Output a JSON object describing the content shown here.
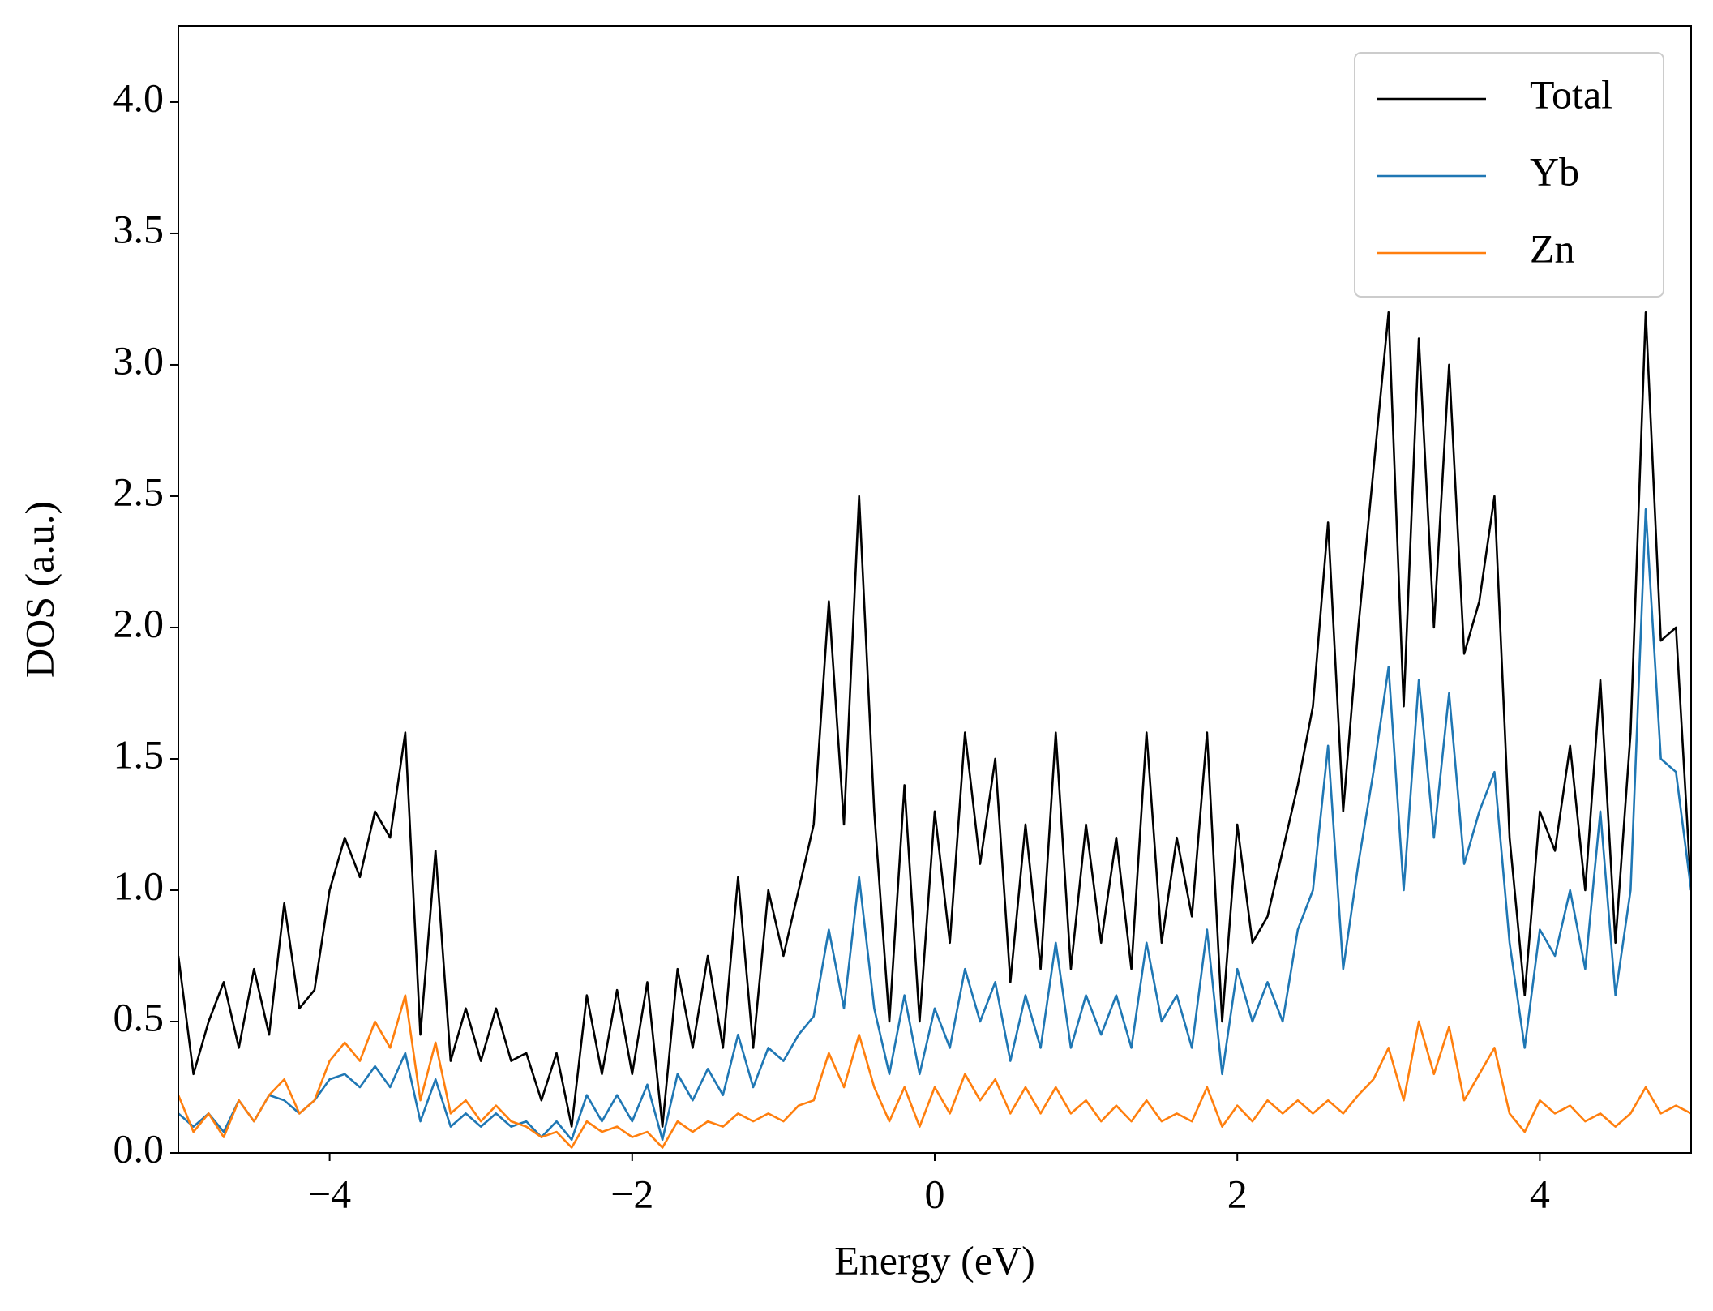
{
  "chart_data": {
    "type": "line",
    "xlabel": "Energy (eV)",
    "ylabel": "DOS (a.u.)",
    "x": [
      -5.0,
      -4.9,
      -4.8,
      -4.7,
      -4.6,
      -4.5,
      -4.4,
      -4.3,
      -4.2,
      -4.1,
      -4.0,
      -3.9,
      -3.8,
      -3.7,
      -3.6,
      -3.5,
      -3.4,
      -3.3,
      -3.2,
      -3.1,
      -3.0,
      -2.9,
      -2.8,
      -2.7,
      -2.6,
      -2.5,
      -2.4,
      -2.3,
      -2.2,
      -2.1,
      -2.0,
      -1.9,
      -1.8,
      -1.7,
      -1.6,
      -1.5,
      -1.4,
      -1.3,
      -1.2,
      -1.1,
      -1.0,
      -0.9,
      -0.8,
      -0.7,
      -0.6,
      -0.5,
      -0.4,
      -0.3,
      -0.2,
      -0.1,
      0.0,
      0.1,
      0.2,
      0.3,
      0.4,
      0.5,
      0.6,
      0.7,
      0.8,
      0.9,
      1.0,
      1.1,
      1.2,
      1.3,
      1.4,
      1.5,
      1.6,
      1.7,
      1.8,
      1.9,
      2.0,
      2.1,
      2.2,
      2.3,
      2.4,
      2.5,
      2.6,
      2.7,
      2.8,
      2.9,
      3.0,
      3.1,
      3.2,
      3.3,
      3.4,
      3.5,
      3.6,
      3.7,
      3.8,
      3.9,
      4.0,
      4.1,
      4.2,
      4.3,
      4.4,
      4.5,
      4.6,
      4.7,
      4.8,
      4.9,
      5.0
    ],
    "series": [
      {
        "name": "Total",
        "color": "#000000",
        "values": [
          0.75,
          0.3,
          0.5,
          0.65,
          0.4,
          0.7,
          0.45,
          0.95,
          0.55,
          0.62,
          1.0,
          1.2,
          1.05,
          1.3,
          1.2,
          1.6,
          0.45,
          1.15,
          0.35,
          0.55,
          0.35,
          0.55,
          0.35,
          0.38,
          0.2,
          0.38,
          0.1,
          0.6,
          0.3,
          0.62,
          0.3,
          0.65,
          0.1,
          0.7,
          0.4,
          0.75,
          0.4,
          1.05,
          0.4,
          1.0,
          0.75,
          1.0,
          1.25,
          2.1,
          1.25,
          2.5,
          1.3,
          0.5,
          1.4,
          0.5,
          1.3,
          0.8,
          1.6,
          1.1,
          1.5,
          0.65,
          1.25,
          0.7,
          1.6,
          0.7,
          1.25,
          0.8,
          1.2,
          0.7,
          1.6,
          0.8,
          1.2,
          0.9,
          1.6,
          0.5,
          1.25,
          0.8,
          0.9,
          1.15,
          1.4,
          1.7,
          2.4,
          1.3,
          2.0,
          2.6,
          3.2,
          1.7,
          3.1,
          2.0,
          3.0,
          1.9,
          2.1,
          2.5,
          1.2,
          0.6,
          1.3,
          1.15,
          1.55,
          1.0,
          1.8,
          0.8,
          1.6,
          3.2,
          1.95,
          2.0,
          1.0
        ]
      },
      {
        "name": "Yb",
        "color": "#1f77b4",
        "values": [
          0.15,
          0.1,
          0.15,
          0.08,
          0.2,
          0.12,
          0.22,
          0.2,
          0.15,
          0.2,
          0.28,
          0.3,
          0.25,
          0.33,
          0.25,
          0.38,
          0.12,
          0.28,
          0.1,
          0.15,
          0.1,
          0.15,
          0.1,
          0.12,
          0.06,
          0.12,
          0.05,
          0.22,
          0.12,
          0.22,
          0.12,
          0.26,
          0.05,
          0.3,
          0.2,
          0.32,
          0.22,
          0.45,
          0.25,
          0.4,
          0.35,
          0.45,
          0.52,
          0.85,
          0.55,
          1.05,
          0.55,
          0.3,
          0.6,
          0.3,
          0.55,
          0.4,
          0.7,
          0.5,
          0.65,
          0.35,
          0.6,
          0.4,
          0.8,
          0.4,
          0.6,
          0.45,
          0.6,
          0.4,
          0.8,
          0.5,
          0.6,
          0.4,
          0.85,
          0.3,
          0.7,
          0.5,
          0.65,
          0.5,
          0.85,
          1.0,
          1.55,
          0.7,
          1.1,
          1.45,
          1.85,
          1.0,
          1.8,
          1.2,
          1.75,
          1.1,
          1.3,
          1.45,
          0.8,
          0.4,
          0.85,
          0.75,
          1.0,
          0.7,
          1.3,
          0.6,
          1.0,
          2.45,
          1.5,
          1.45,
          1.0
        ]
      },
      {
        "name": "Zn",
        "color": "#ff7f0e",
        "values": [
          0.22,
          0.08,
          0.15,
          0.06,
          0.2,
          0.12,
          0.22,
          0.28,
          0.15,
          0.2,
          0.35,
          0.42,
          0.35,
          0.5,
          0.4,
          0.6,
          0.2,
          0.42,
          0.15,
          0.2,
          0.12,
          0.18,
          0.12,
          0.1,
          0.06,
          0.08,
          0.02,
          0.12,
          0.08,
          0.1,
          0.06,
          0.08,
          0.02,
          0.12,
          0.08,
          0.12,
          0.1,
          0.15,
          0.12,
          0.15,
          0.12,
          0.18,
          0.2,
          0.38,
          0.25,
          0.45,
          0.25,
          0.12,
          0.25,
          0.1,
          0.25,
          0.15,
          0.3,
          0.2,
          0.28,
          0.15,
          0.25,
          0.15,
          0.25,
          0.15,
          0.2,
          0.12,
          0.18,
          0.12,
          0.2,
          0.12,
          0.15,
          0.12,
          0.25,
          0.1,
          0.18,
          0.12,
          0.2,
          0.15,
          0.2,
          0.15,
          0.2,
          0.15,
          0.22,
          0.28,
          0.4,
          0.2,
          0.5,
          0.3,
          0.48,
          0.2,
          0.3,
          0.4,
          0.15,
          0.08,
          0.2,
          0.15,
          0.18,
          0.12,
          0.15,
          0.1,
          0.15,
          0.25,
          0.15,
          0.18,
          0.15
        ]
      }
    ],
    "xlim": [
      -5,
      5
    ],
    "xticks": [
      {
        "value": -4,
        "label": "−4"
      },
      {
        "value": -2,
        "label": "−2"
      },
      0,
      2,
      4
    ],
    "ylim": [
      0,
      4.29
    ],
    "yticks": [
      {
        "value": 0,
        "label": "0.0"
      },
      0.5,
      {
        "value": 1,
        "label": "1.0"
      },
      1.5,
      {
        "value": 2,
        "label": "2.0"
      },
      2.5,
      {
        "value": 3,
        "label": "3.0"
      },
      3.5,
      {
        "value": 4,
        "label": "4.0"
      }
    ],
    "legend": "upper right"
  }
}
